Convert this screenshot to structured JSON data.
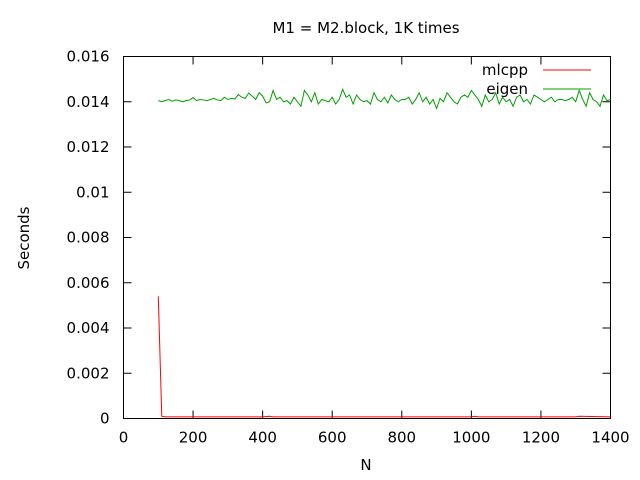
{
  "chart_data": {
    "type": "line",
    "title": "M1 = M2.block, 1K times",
    "xlabel": "N",
    "ylabel": "Seconds",
    "xlim": [
      0,
      1400
    ],
    "ylim": [
      0,
      0.016
    ],
    "xticks": [
      0,
      200,
      400,
      600,
      800,
      1000,
      1200,
      1400
    ],
    "xtick_labels": [
      "0",
      "200",
      "400",
      "600",
      "800",
      "1000",
      "1200",
      "1400"
    ],
    "yticks": [
      0,
      0.002,
      0.004,
      0.006,
      0.008,
      0.01,
      0.012,
      0.014,
      0.016
    ],
    "ytick_labels": [
      "0",
      "0.002",
      "0.004",
      "0.006",
      "0.008",
      "0.01",
      "0.012",
      "0.014",
      "0.016"
    ],
    "grid": false,
    "legend_position": "top-right",
    "series": [
      {
        "name": "mlcpp",
        "color": "#ff0000",
        "x": [
          100,
          110,
          120,
          140,
          160,
          200,
          300,
          400,
          420,
          430,
          440,
          500,
          600,
          700,
          800,
          900,
          1000,
          1010,
          1020,
          1100,
          1200,
          1300,
          1310,
          1400
        ],
        "values": [
          0.0054,
          0.0001,
          7e-05,
          7e-05,
          7e-05,
          7e-05,
          7e-05,
          7e-05,
          0.0001,
          7e-05,
          7e-05,
          7e-05,
          7e-05,
          7e-05,
          7e-05,
          7e-05,
          7e-05,
          0.0001,
          7e-05,
          7e-05,
          7e-05,
          7e-05,
          0.0001,
          7e-05
        ]
      },
      {
        "name": "eigen",
        "color": "#00a000",
        "x": [
          100,
          110,
          120,
          130,
          140,
          150,
          160,
          170,
          180,
          190,
          200,
          210,
          220,
          230,
          240,
          250,
          260,
          270,
          280,
          290,
          300,
          310,
          320,
          330,
          340,
          350,
          360,
          370,
          380,
          390,
          400,
          410,
          420,
          430,
          440,
          450,
          460,
          470,
          480,
          490,
          500,
          510,
          520,
          530,
          540,
          550,
          560,
          570,
          580,
          590,
          600,
          610,
          620,
          630,
          640,
          650,
          660,
          670,
          680,
          690,
          700,
          710,
          720,
          730,
          740,
          750,
          760,
          770,
          780,
          790,
          800,
          810,
          820,
          830,
          840,
          850,
          860,
          870,
          880,
          890,
          900,
          910,
          920,
          930,
          940,
          950,
          960,
          970,
          980,
          990,
          1000,
          1010,
          1020,
          1030,
          1040,
          1050,
          1060,
          1070,
          1080,
          1090,
          1100,
          1110,
          1120,
          1130,
          1140,
          1150,
          1160,
          1170,
          1180,
          1190,
          1200,
          1210,
          1220,
          1230,
          1240,
          1250,
          1260,
          1270,
          1280,
          1290,
          1300,
          1310,
          1320,
          1330,
          1340,
          1350,
          1360,
          1370,
          1380,
          1390,
          1400
        ],
        "values": [
          0.01405,
          0.014,
          0.01405,
          0.0141,
          0.01402,
          0.01408,
          0.01405,
          0.014,
          0.01405,
          0.01408,
          0.01418,
          0.01405,
          0.0141,
          0.01408,
          0.01405,
          0.0141,
          0.01415,
          0.01408,
          0.01405,
          0.0142,
          0.0141,
          0.01415,
          0.01412,
          0.01432,
          0.0142,
          0.01415,
          0.01438,
          0.01425,
          0.0141,
          0.0144,
          0.01425,
          0.01395,
          0.014,
          0.0145,
          0.0141,
          0.0142,
          0.014,
          0.01405,
          0.0139,
          0.0142,
          0.014,
          0.0138,
          0.0145,
          0.0143,
          0.014,
          0.0144,
          0.0139,
          0.0141,
          0.01405,
          0.014,
          0.0142,
          0.0139,
          0.0141,
          0.01455,
          0.0142,
          0.0143,
          0.0139,
          0.0143,
          0.0141,
          0.014,
          0.01405,
          0.0139,
          0.0144,
          0.0141,
          0.014,
          0.0142,
          0.01395,
          0.0143,
          0.0141,
          0.014,
          0.0141,
          0.0141,
          0.0142,
          0.0139,
          0.0141,
          0.0144,
          0.014,
          0.0142,
          0.0139,
          0.0141,
          0.0137,
          0.01415,
          0.014,
          0.0144,
          0.0142,
          0.014,
          0.0139,
          0.0142,
          0.0143,
          0.0142,
          0.0145,
          0.0143,
          0.0141,
          0.0138,
          0.0143,
          0.014,
          0.0141,
          0.0144,
          0.0139,
          0.0142,
          0.014,
          0.0141,
          0.0138,
          0.0142,
          0.0143,
          0.014,
          0.0141,
          0.0139,
          0.0143,
          0.0142,
          0.0141,
          0.014,
          0.0141,
          0.0142,
          0.014,
          0.0141,
          0.0141,
          0.01405,
          0.0141,
          0.0142,
          0.014,
          0.0145,
          0.0141,
          0.0138,
          0.0144,
          0.0141,
          0.014,
          0.0138,
          0.0143,
          0.01405,
          0.0141
        ]
      }
    ]
  }
}
